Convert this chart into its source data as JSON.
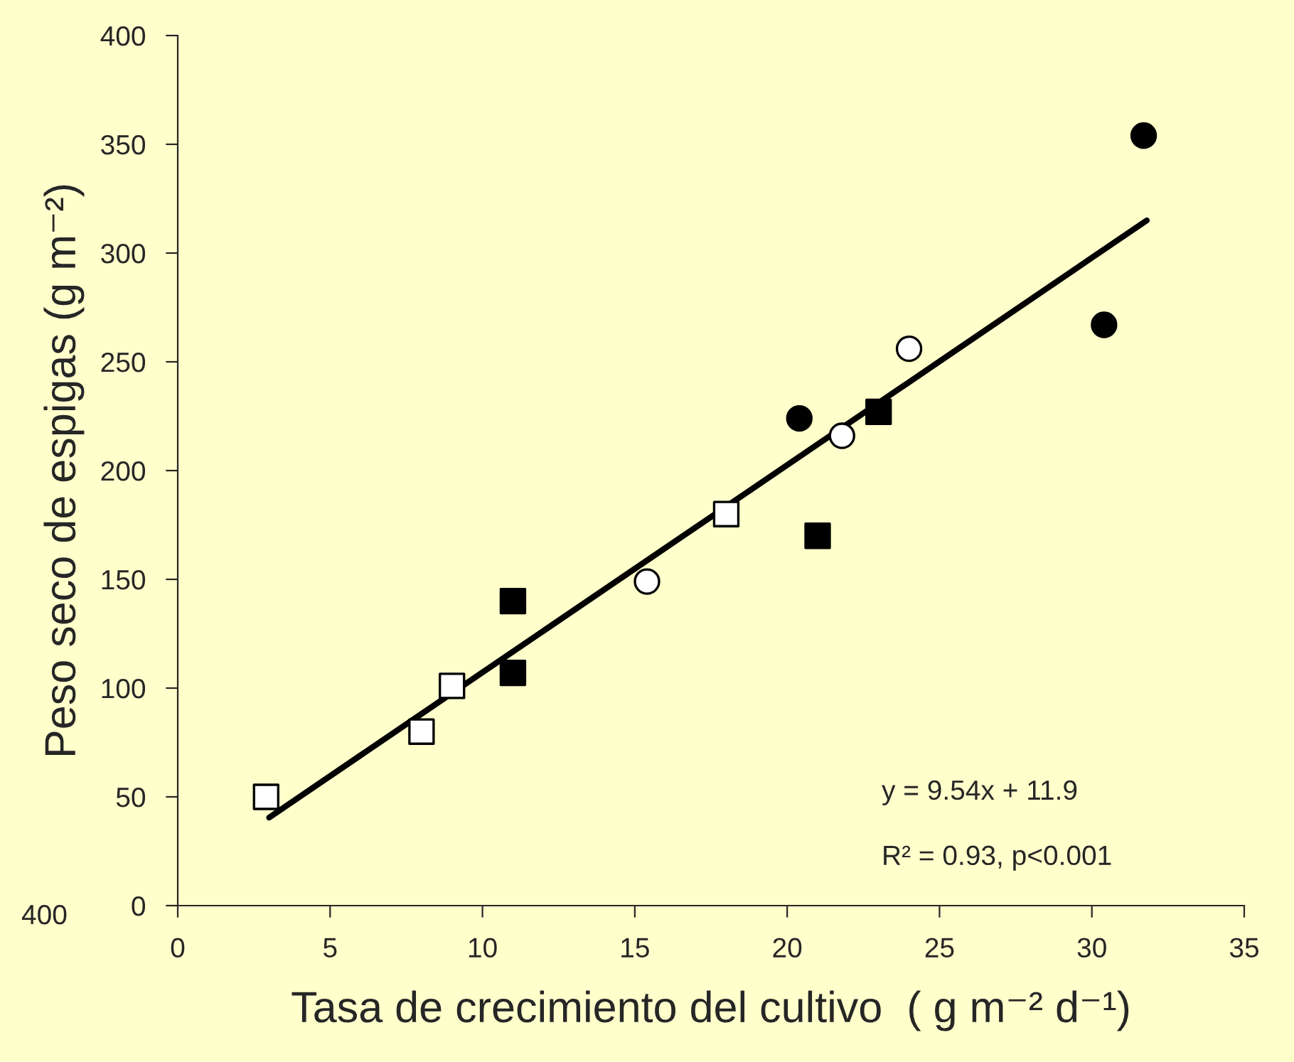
{
  "chart_data": {
    "type": "scatter",
    "xlabel": "Tasa de crecimiento del cultivo  ( g m⁻² d⁻¹)",
    "ylabel": "Peso seco de espigas (g m⁻²)",
    "xlim": [
      0,
      35
    ],
    "xticks": [
      0,
      5,
      10,
      15,
      20,
      25,
      30,
      35
    ],
    "ylim": [
      0,
      400
    ],
    "yticks": [
      0,
      50,
      100,
      150,
      200,
      250,
      300,
      350,
      400
    ],
    "grid": false,
    "legend": false,
    "series": [
      {
        "color": "#ffffff",
        "marker": "square",
        "x": [
          2.9,
          8.0,
          9.0,
          18.0
        ],
        "values": [
          50,
          80,
          101,
          180
        ]
      },
      {
        "color": "#000000",
        "marker": "square",
        "x": [
          11.0,
          11.0,
          21.0,
          23.0
        ],
        "values": [
          140,
          107,
          170,
          227
        ]
      },
      {
        "color": "#ffffff",
        "marker": "circle",
        "x": [
          15.4,
          21.8,
          24.0
        ],
        "values": [
          149,
          216,
          256
        ]
      },
      {
        "color": "#000000",
        "marker": "circle",
        "x": [
          20.4,
          30.4,
          31.7
        ],
        "values": [
          224,
          267,
          354
        ]
      },
      {
        "type": "line",
        "color": "#000000",
        "marker": "none",
        "line_style": "solid",
        "x": [
          3.0,
          31.8
        ],
        "values": [
          40.5,
          315
        ]
      }
    ],
    "annotations": [
      "y = 9.54x + 11.9",
      "R² = 0.93, p<0.001",
      "400"
    ]
  }
}
